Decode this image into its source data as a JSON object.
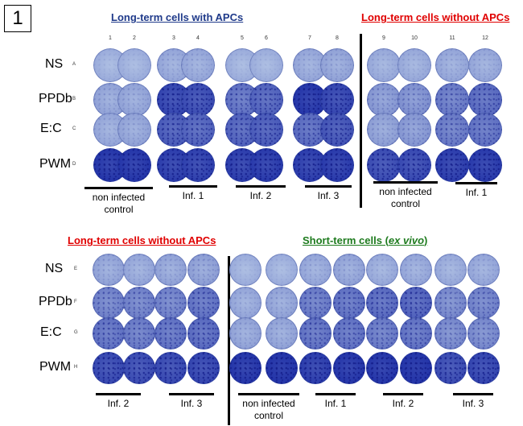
{
  "panel_number": "1",
  "colors": {
    "well_light": "#b6c7e6",
    "well_dark": "#2233a8",
    "header_blue": "#1f3a8a",
    "header_red": "#e00000",
    "header_green": "#1e7b1e"
  },
  "top": {
    "header_left": "Long-term cells with APCs",
    "header_right": "Long-term cells without APCs",
    "column_numbers": [
      "1",
      "2",
      "3",
      "4",
      "5",
      "6",
      "7",
      "8",
      "9",
      "10",
      "11",
      "12"
    ],
    "row_labels": [
      "NS",
      "PPDb",
      "E:C",
      "PWM"
    ],
    "row_letters": [
      "A",
      "B",
      "C",
      "D"
    ],
    "groups": [
      {
        "label": "non infected\ncontrol"
      },
      {
        "label": "Inf. 1"
      },
      {
        "label": "Inf. 2"
      },
      {
        "label": "Inf. 3"
      },
      {
        "label": "non infected\ncontrol"
      },
      {
        "label": "Inf. 1"
      }
    ],
    "wells": [
      [
        0.05,
        0.05,
        0.1,
        0.1,
        0.05,
        0.05,
        0.1,
        0.12,
        0.08,
        0.08,
        0.1,
        0.1
      ],
      [
        0.12,
        0.12,
        0.75,
        0.7,
        0.45,
        0.55,
        0.85,
        0.75,
        0.2,
        0.25,
        0.4,
        0.5
      ],
      [
        0.1,
        0.12,
        0.6,
        0.55,
        0.55,
        0.6,
        0.5,
        0.65,
        0.15,
        0.2,
        0.4,
        0.45
      ],
      [
        0.85,
        0.85,
        0.8,
        0.78,
        0.8,
        0.82,
        0.8,
        0.82,
        0.7,
        0.72,
        0.8,
        0.82
      ]
    ]
  },
  "bottom": {
    "header_left": "Long-term cells without APCs",
    "header_right_prefix": "Short-term cells (",
    "header_right_italic": "ex vivo",
    "header_right_suffix": ")",
    "row_labels": [
      "NS",
      "PPDb",
      "E:C",
      "PWM"
    ],
    "row_letters": [
      "E",
      "F",
      "G",
      "H"
    ],
    "groups": [
      {
        "label": "Inf. 2"
      },
      {
        "label": "Inf. 3"
      },
      {
        "label": "non infected\ncontrol"
      },
      {
        "label": "Inf. 1"
      },
      {
        "label": "Inf. 2"
      },
      {
        "label": "Inf. 3"
      }
    ],
    "wells_left": [
      [
        0.12,
        0.1,
        0.12,
        0.15
      ],
      [
        0.35,
        0.35,
        0.35,
        0.45
      ],
      [
        0.45,
        0.4,
        0.45,
        0.5
      ],
      [
        0.72,
        0.7,
        0.72,
        0.75
      ]
    ],
    "wells_right": [
      [
        0.05,
        0.05,
        0.1,
        0.12,
        0.08,
        0.1,
        0.08,
        0.1
      ],
      [
        0.1,
        0.12,
        0.4,
        0.45,
        0.5,
        0.55,
        0.3,
        0.35
      ],
      [
        0.12,
        0.12,
        0.45,
        0.45,
        0.4,
        0.45,
        0.3,
        0.3
      ],
      [
        0.85,
        0.9,
        0.8,
        0.85,
        0.85,
        0.9,
        0.7,
        0.75
      ]
    ]
  }
}
